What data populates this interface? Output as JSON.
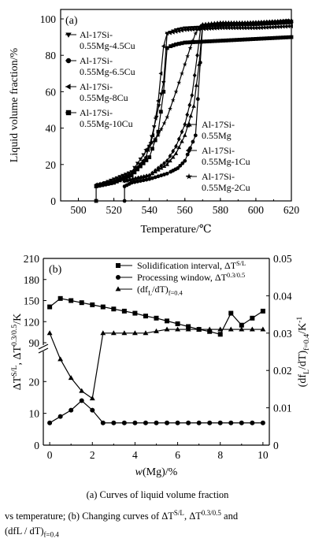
{
  "chart_data": [
    {
      "panel": "(a)",
      "type": "line",
      "xlabel": "Temperature/℃",
      "ylabel": "Liquid volume fraction/%",
      "xlim": [
        490,
        620
      ],
      "ylim": [
        0,
        100
      ],
      "xticks": [
        "500",
        "520",
        "540",
        "560",
        "580",
        "600",
        "620"
      ],
      "yticks": [
        "0",
        "20",
        "40",
        "60",
        "80",
        "100"
      ],
      "legend_left": [
        {
          "marker": "triangle-down",
          "label_lines": [
            "Al-17Si-",
            "0.55Mg-4.5Cu"
          ]
        },
        {
          "marker": "circle",
          "label_lines": [
            "Al-17Si-",
            "0.55Mg-6.5Cu"
          ]
        },
        {
          "marker": "triangle-left",
          "label_lines": [
            "Al-17Si-",
            "0.55Mg-8Cu"
          ]
        },
        {
          "marker": "square",
          "label_lines": [
            "Al-17Si-",
            "0.55Mg-10Cu"
          ]
        }
      ],
      "legend_right": [
        {
          "marker": "triangle-up",
          "label_lines": [
            "Al-17Si-",
            "0.55Mg"
          ]
        },
        {
          "marker": "diamond",
          "label_lines": [
            "Al-17Si-",
            "0.55Mg-1Cu"
          ]
        },
        {
          "marker": "star",
          "label_lines": [
            "Al-17Si-",
            "0.55Mg-2Cu"
          ]
        }
      ],
      "series": [
        {
          "marker": "square",
          "x": [
            510,
            510,
            520,
            530,
            540,
            545,
            548,
            550,
            552,
            555,
            560,
            580,
            600,
            620
          ],
          "y": [
            0,
            8,
            10,
            14,
            24,
            38,
            60,
            84,
            85,
            86,
            87,
            88,
            89,
            90
          ]
        },
        {
          "marker": "triangle-left",
          "x": [
            510,
            520,
            530,
            538,
            542,
            545,
            548,
            550,
            555,
            560,
            580,
            600,
            620
          ],
          "y": [
            9,
            11,
            15,
            24,
            36,
            55,
            85,
            92,
            93,
            94,
            95,
            95,
            96
          ]
        },
        {
          "marker": "circle",
          "x": [
            526,
            526,
            530,
            540,
            550,
            552,
            556,
            560,
            566,
            570,
            580,
            600,
            620
          ],
          "y": [
            0,
            8,
            10,
            12,
            15,
            16,
            18,
            22,
            36,
            96,
            97,
            97,
            98
          ]
        },
        {
          "marker": "triangle-down",
          "x": [
            515,
            530,
            540,
            544,
            548,
            550,
            555,
            560,
            580,
            600,
            618
          ],
          "y": [
            10,
            16,
            30,
            46,
            65,
            92,
            94,
            95,
            96,
            97,
            99
          ]
        },
        {
          "marker": "star",
          "x": [
            538,
            545,
            550,
            555,
            560,
            563,
            566,
            568,
            570,
            580,
            600,
            620
          ],
          "y": [
            28,
            36,
            46,
            60,
            75,
            84,
            92,
            95,
            96,
            97,
            98,
            99
          ]
        },
        {
          "marker": "diamond",
          "x": [
            526,
            540,
            550,
            555,
            560,
            564,
            567,
            569,
            580,
            600,
            620
          ],
          "y": [
            11,
            14,
            22,
            30,
            42,
            58,
            80,
            96,
            97,
            98,
            99
          ]
        },
        {
          "marker": "triangle-up",
          "x": [
            526,
            540,
            550,
            555,
            560,
            565,
            568,
            570,
            580,
            600,
            620
          ],
          "y": [
            11,
            14,
            20,
            26,
            36,
            52,
            75,
            97,
            98,
            98,
            99
          ]
        }
      ]
    },
    {
      "panel": "(b)",
      "type": "line",
      "xlabel": "w(Mg)/%",
      "xlim": [
        -0.3,
        10.3
      ],
      "xticks": [
        "0",
        "2",
        "4",
        "6",
        "8",
        "10"
      ],
      "ylabel_left": "ΔT^{S/L}, ΔT^{0.3/0.5}/K",
      "ylabel_right": "(df_L/dT)_{f=0.4}/K^{-1}",
      "left_axis_upper": {
        "range": [
          90,
          210
        ],
        "ticks": [
          "90",
          "120",
          "150",
          "180",
          "210"
        ]
      },
      "left_axis_lower": {
        "range": [
          0,
          28
        ],
        "ticks": [
          "0",
          "10",
          "20"
        ]
      },
      "right_axis": {
        "range": [
          0,
          0.05
        ],
        "ticks": [
          "0",
          "0.01",
          "0.02",
          "0.03",
          "0.04",
          "0.05"
        ]
      },
      "legend": [
        {
          "marker": "square",
          "label": "Solidification interval, ΔT^{S/L}"
        },
        {
          "marker": "circle",
          "label": "Processing window, ΔT^{0.3/0.5}"
        },
        {
          "marker": "triangle-up",
          "label": "(df_L/dT)_{f=0.4}"
        }
      ],
      "series": [
        {
          "marker": "square",
          "axis": "left-upper",
          "x": [
            0,
            0.5,
            1,
            1.5,
            2,
            2.5,
            3,
            3.5,
            4,
            4.5,
            5,
            5.5,
            6,
            6.5,
            7,
            7.5,
            8,
            8.5,
            9,
            9.5,
            10
          ],
          "y": [
            141,
            153,
            150,
            147,
            144,
            141,
            138,
            135,
            132,
            128,
            125,
            121,
            117,
            113,
            109,
            106,
            102,
            132,
            115,
            125,
            135
          ]
        },
        {
          "marker": "circle",
          "axis": "left-lower",
          "x": [
            0,
            0.5,
            1,
            1.5,
            2,
            2.5,
            3,
            3.5,
            4,
            4.5,
            5,
            5.5,
            6,
            6.5,
            7,
            7.5,
            8,
            8.5,
            9,
            9.5,
            10
          ],
          "y": [
            7,
            9,
            11,
            14,
            11,
            7,
            7,
            7,
            7,
            7,
            7,
            7,
            7,
            7,
            7,
            7,
            7,
            7,
            7,
            7,
            7
          ]
        },
        {
          "marker": "triangle-up",
          "axis": "right",
          "x": [
            0,
            0.5,
            1,
            1.5,
            2,
            2.5,
            3,
            3.5,
            4,
            4.5,
            5,
            5.5,
            6,
            6.5,
            7,
            7.5,
            8,
            8.5,
            9,
            9.5,
            10
          ],
          "y": [
            0.03,
            0.023,
            0.018,
            0.0145,
            0.0125,
            0.03,
            0.03,
            0.03,
            0.03,
            0.03,
            0.0305,
            0.031,
            0.031,
            0.031,
            0.031,
            0.031,
            0.031,
            0.031,
            0.031,
            0.031,
            0.031
          ]
        }
      ]
    }
  ],
  "caption": {
    "line1": "(a) Curves of liquid volume fraction",
    "line2": "vs temperature; (b) Changing curves of ΔT^{S/L}, ΔT^{0.3/0.5} and",
    "line3": "(df_L / dT)_{f=0.4}"
  }
}
